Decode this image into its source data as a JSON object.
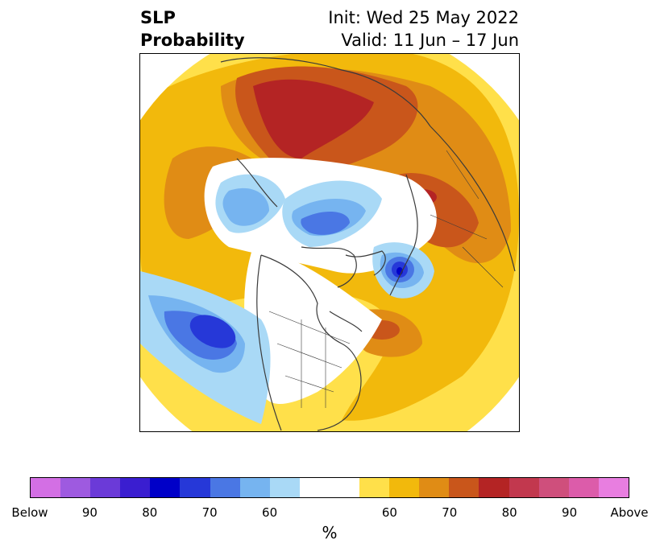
{
  "header": {
    "variable": "SLP",
    "product": "Probability",
    "init": "Init: Wed 25 May 2022",
    "valid": "Valid: 11 Jun – 17 Jun"
  },
  "map": {
    "projection": "north-polar-stereographic",
    "overlays": [
      "coastlines",
      "country-borders",
      "state-borders"
    ],
    "palette": {
      "white": "#ffffff",
      "above_60": "#ffe04a",
      "above_65": "#f2b90c",
      "above_70": "#e08c15",
      "above_75": "#c9561b",
      "above_80": "#b42424",
      "below_60": "#a9d9f6",
      "below_65": "#76b4f0",
      "below_70": "#4a77e4",
      "below_75": "#2638d8",
      "below_80": "#0000c8",
      "coast": "#3a3a3a"
    }
  },
  "colorbar": {
    "colors": [
      "#d36fe4",
      "#9e5ae0",
      "#6b3ad8",
      "#3a1ed0",
      "#0000c8",
      "#2638d8",
      "#4a77e4",
      "#76b4f0",
      "#a9d9f6",
      "#ffffff",
      "#ffe04a",
      "#f2b90c",
      "#e08c15",
      "#c9561b",
      "#b42424",
      "#c2384e",
      "#cf4f7c",
      "#dc5caa",
      "#e87ee0"
    ],
    "widths": [
      1,
      1,
      1,
      1,
      1,
      1,
      1,
      1,
      1,
      2,
      1,
      1,
      1,
      1,
      1,
      1,
      1,
      1,
      1
    ],
    "labels": [
      "Below",
      "90",
      "80",
      "70",
      "60",
      "60",
      "70",
      "80",
      "90",
      "Above"
    ],
    "units": "%"
  }
}
